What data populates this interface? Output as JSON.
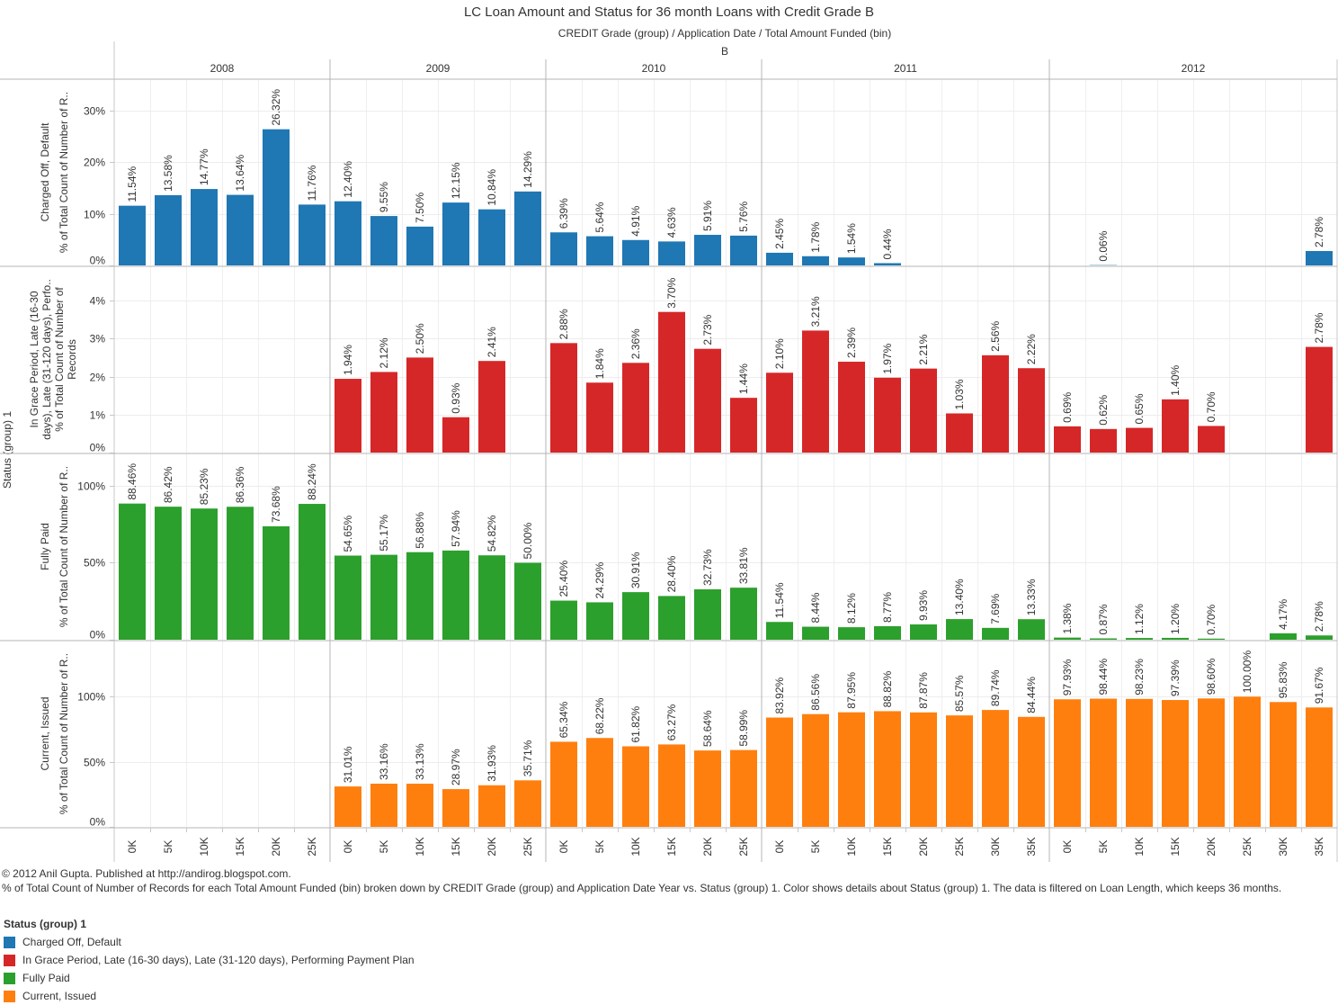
{
  "chart_data": {
    "type": "bar",
    "title": "LC Loan Amount and Status for 36 month Loans with Credit Grade B",
    "column_header": "CREDIT Grade (group)  /  Application Date  /  Total Amount Funded (bin)",
    "grade": "B",
    "row_dimension_label": "Status (group) 1",
    "years": [
      {
        "year": "2008",
        "categories": [
          "0K",
          "5K",
          "10K",
          "15K",
          "20K",
          "25K"
        ]
      },
      {
        "year": "2009",
        "categories": [
          "0K",
          "5K",
          "10K",
          "15K",
          "20K",
          "25K"
        ]
      },
      {
        "year": "2010",
        "categories": [
          "0K",
          "5K",
          "10K",
          "15K",
          "20K",
          "25K"
        ]
      },
      {
        "year": "2011",
        "categories": [
          "0K",
          "5K",
          "10K",
          "15K",
          "20K",
          "25K",
          "30K",
          "35K"
        ]
      },
      {
        "year": "2012",
        "categories": [
          "0K",
          "5K",
          "10K",
          "15K",
          "20K",
          "25K",
          "30K",
          "35K"
        ]
      }
    ],
    "rows": [
      {
        "status": "Charged Off, Default",
        "ylabel": "% of Total Count of Number of R..",
        "color": "#1f77b4",
        "ylim": [
          0,
          36
        ],
        "ticks": [
          0,
          10,
          20,
          30
        ],
        "tick_labels": [
          "0%",
          "10%",
          "20%",
          "30%"
        ],
        "values": [
          [
            11.54,
            13.58,
            14.77,
            13.64,
            26.32,
            11.76
          ],
          [
            12.4,
            9.55,
            7.5,
            12.15,
            10.84,
            14.29
          ],
          [
            6.39,
            5.64,
            4.91,
            4.63,
            5.91,
            5.76
          ],
          [
            2.45,
            1.78,
            1.54,
            0.44,
            null,
            null,
            null,
            null
          ],
          [
            null,
            0.06,
            null,
            null,
            null,
            null,
            null,
            2.78
          ]
        ]
      },
      {
        "status": "In Grace Period, Late (16-30 days), Late (31-120 days), Performing Payment Plan",
        "status_label_lines": [
          "In Grace Period, Late (16-30",
          "days), Late (31-120 days), Perfo.."
        ],
        "ylabel_lines": [
          "% of Total Count of Number of",
          "Records"
        ],
        "color": "#d62728",
        "ylim": [
          0,
          4.9
        ],
        "ticks": [
          0,
          1,
          2,
          3,
          4
        ],
        "tick_labels": [
          "0%",
          "1%",
          "2%",
          "3%",
          "4%"
        ],
        "values": [
          [
            null,
            null,
            null,
            null,
            null,
            null
          ],
          [
            1.94,
            2.12,
            2.5,
            0.93,
            2.41,
            null
          ],
          [
            2.88,
            1.84,
            2.36,
            3.7,
            2.73,
            1.44
          ],
          [
            2.1,
            3.21,
            2.39,
            1.97,
            2.21,
            1.03,
            2.56,
            2.22
          ],
          [
            0.69,
            0.62,
            0.65,
            1.4,
            0.7,
            null,
            null,
            2.78
          ]
        ]
      },
      {
        "status": "Fully Paid",
        "ylabel": "% of Total Count of Number of R..",
        "color": "#2ca02c",
        "ylim": [
          0,
          121
        ],
        "ticks": [
          0,
          50,
          100
        ],
        "tick_labels": [
          "0%",
          "50%",
          "100%"
        ],
        "values": [
          [
            88.46,
            86.42,
            85.23,
            86.36,
            73.68,
            88.24
          ],
          [
            54.65,
            55.17,
            56.88,
            57.94,
            54.82,
            50.0
          ],
          [
            25.4,
            24.29,
            30.91,
            28.4,
            32.73,
            33.81
          ],
          [
            11.54,
            8.44,
            8.12,
            8.77,
            9.93,
            13.4,
            7.69,
            13.33
          ],
          [
            1.38,
            0.87,
            1.12,
            1.2,
            0.7,
            null,
            4.17,
            2.78
          ]
        ]
      },
      {
        "status": "Current, Issued",
        "ylabel": "% of Total Count of Number of R..",
        "color": "#ff7f0e",
        "ylim": [
          0,
          143
        ],
        "ticks": [
          0,
          50,
          100
        ],
        "tick_labels": [
          "0%",
          "50%",
          "100%"
        ],
        "values": [
          [
            null,
            null,
            null,
            null,
            null,
            null
          ],
          [
            31.01,
            33.16,
            33.13,
            28.97,
            31.93,
            35.71
          ],
          [
            65.34,
            68.22,
            61.82,
            63.27,
            58.64,
            58.99
          ],
          [
            83.92,
            86.56,
            87.95,
            88.82,
            87.87,
            85.57,
            89.74,
            84.44
          ],
          [
            97.93,
            98.44,
            98.23,
            97.39,
            98.6,
            100.0,
            95.83,
            91.67
          ]
        ]
      }
    ],
    "grid": true,
    "legend_position": "bottom-left"
  },
  "footer": {
    "copyright": "© 2012 Anil Gupta. Published at http://andirog.blogspot.com.",
    "description": "% of Total Count of Number of Records for each Total Amount Funded (bin) broken down by CREDIT Grade (group) and Application Date Year vs. Status (group) 1.  Color shows details about Status (group) 1. The data is filtered on Loan Length, which keeps 36 months."
  },
  "legend": {
    "title": "Status (group) 1",
    "items": [
      {
        "label": "Charged Off, Default",
        "color": "#1f77b4"
      },
      {
        "label": "In Grace Period, Late (16-30 days), Late (31-120 days), Performing Payment Plan",
        "color": "#d62728"
      },
      {
        "label": "Fully Paid",
        "color": "#2ca02c"
      },
      {
        "label": "Current, Issued",
        "color": "#ff7f0e"
      }
    ]
  }
}
